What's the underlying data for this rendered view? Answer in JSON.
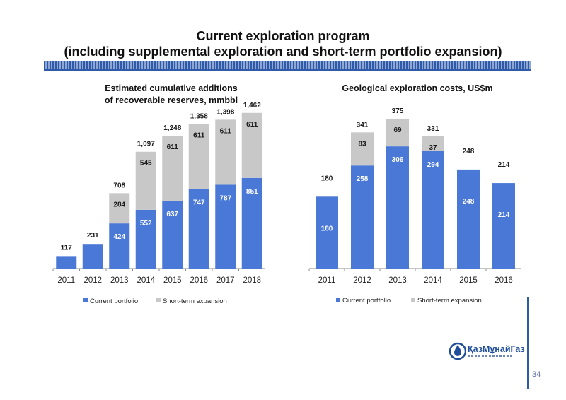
{
  "slide": {
    "title_line1": "Current exploration program",
    "title_line2": "(including supplemental exploration and short-term portfolio expansion)",
    "page_number": "34",
    "logo_text": "ҚазМұнайГаз"
  },
  "colors": {
    "current": "#4a78d6",
    "expansion": "#c8c8c8",
    "accent": "#2e5aa8"
  },
  "chart_data": [
    {
      "type": "bar",
      "stacked": true,
      "title_line1": "Estimated cumulative additions",
      "title_line2": "of recoverable reserves, mmbbl",
      "categories": [
        "2011",
        "2012",
        "2013",
        "2014",
        "2015",
        "2016",
        "2017",
        "2018"
      ],
      "series": [
        {
          "name": "Current portfolio",
          "values": [
            117,
            231,
            424,
            552,
            637,
            747,
            787,
            851
          ]
        },
        {
          "name": "Short-term expansion",
          "values": [
            0,
            0,
            284,
            545,
            611,
            611,
            611,
            611
          ]
        }
      ],
      "totals": [
        "117",
        "231",
        "708",
        "1,097",
        "1,248",
        "1,358",
        "1,398",
        "1,462"
      ],
      "ylim": [
        0,
        1560
      ],
      "legend": "bottom"
    },
    {
      "type": "bar",
      "stacked": true,
      "title_line1": "Geological exploration costs, US$m",
      "categories": [
        "2011",
        "2012",
        "2013",
        "2014",
        "2015",
        "2016"
      ],
      "series": [
        {
          "name": "Current portfolio",
          "values": [
            180,
            258,
            306,
            294,
            248,
            214
          ]
        },
        {
          "name": "Short-term expansion",
          "values": [
            0,
            83,
            69,
            37,
            0,
            0
          ]
        }
      ],
      "totals": [
        "180",
        "341",
        "375",
        "331",
        "248",
        "214"
      ],
      "ylim": [
        0,
        400
      ],
      "legend": "bottom"
    }
  ]
}
